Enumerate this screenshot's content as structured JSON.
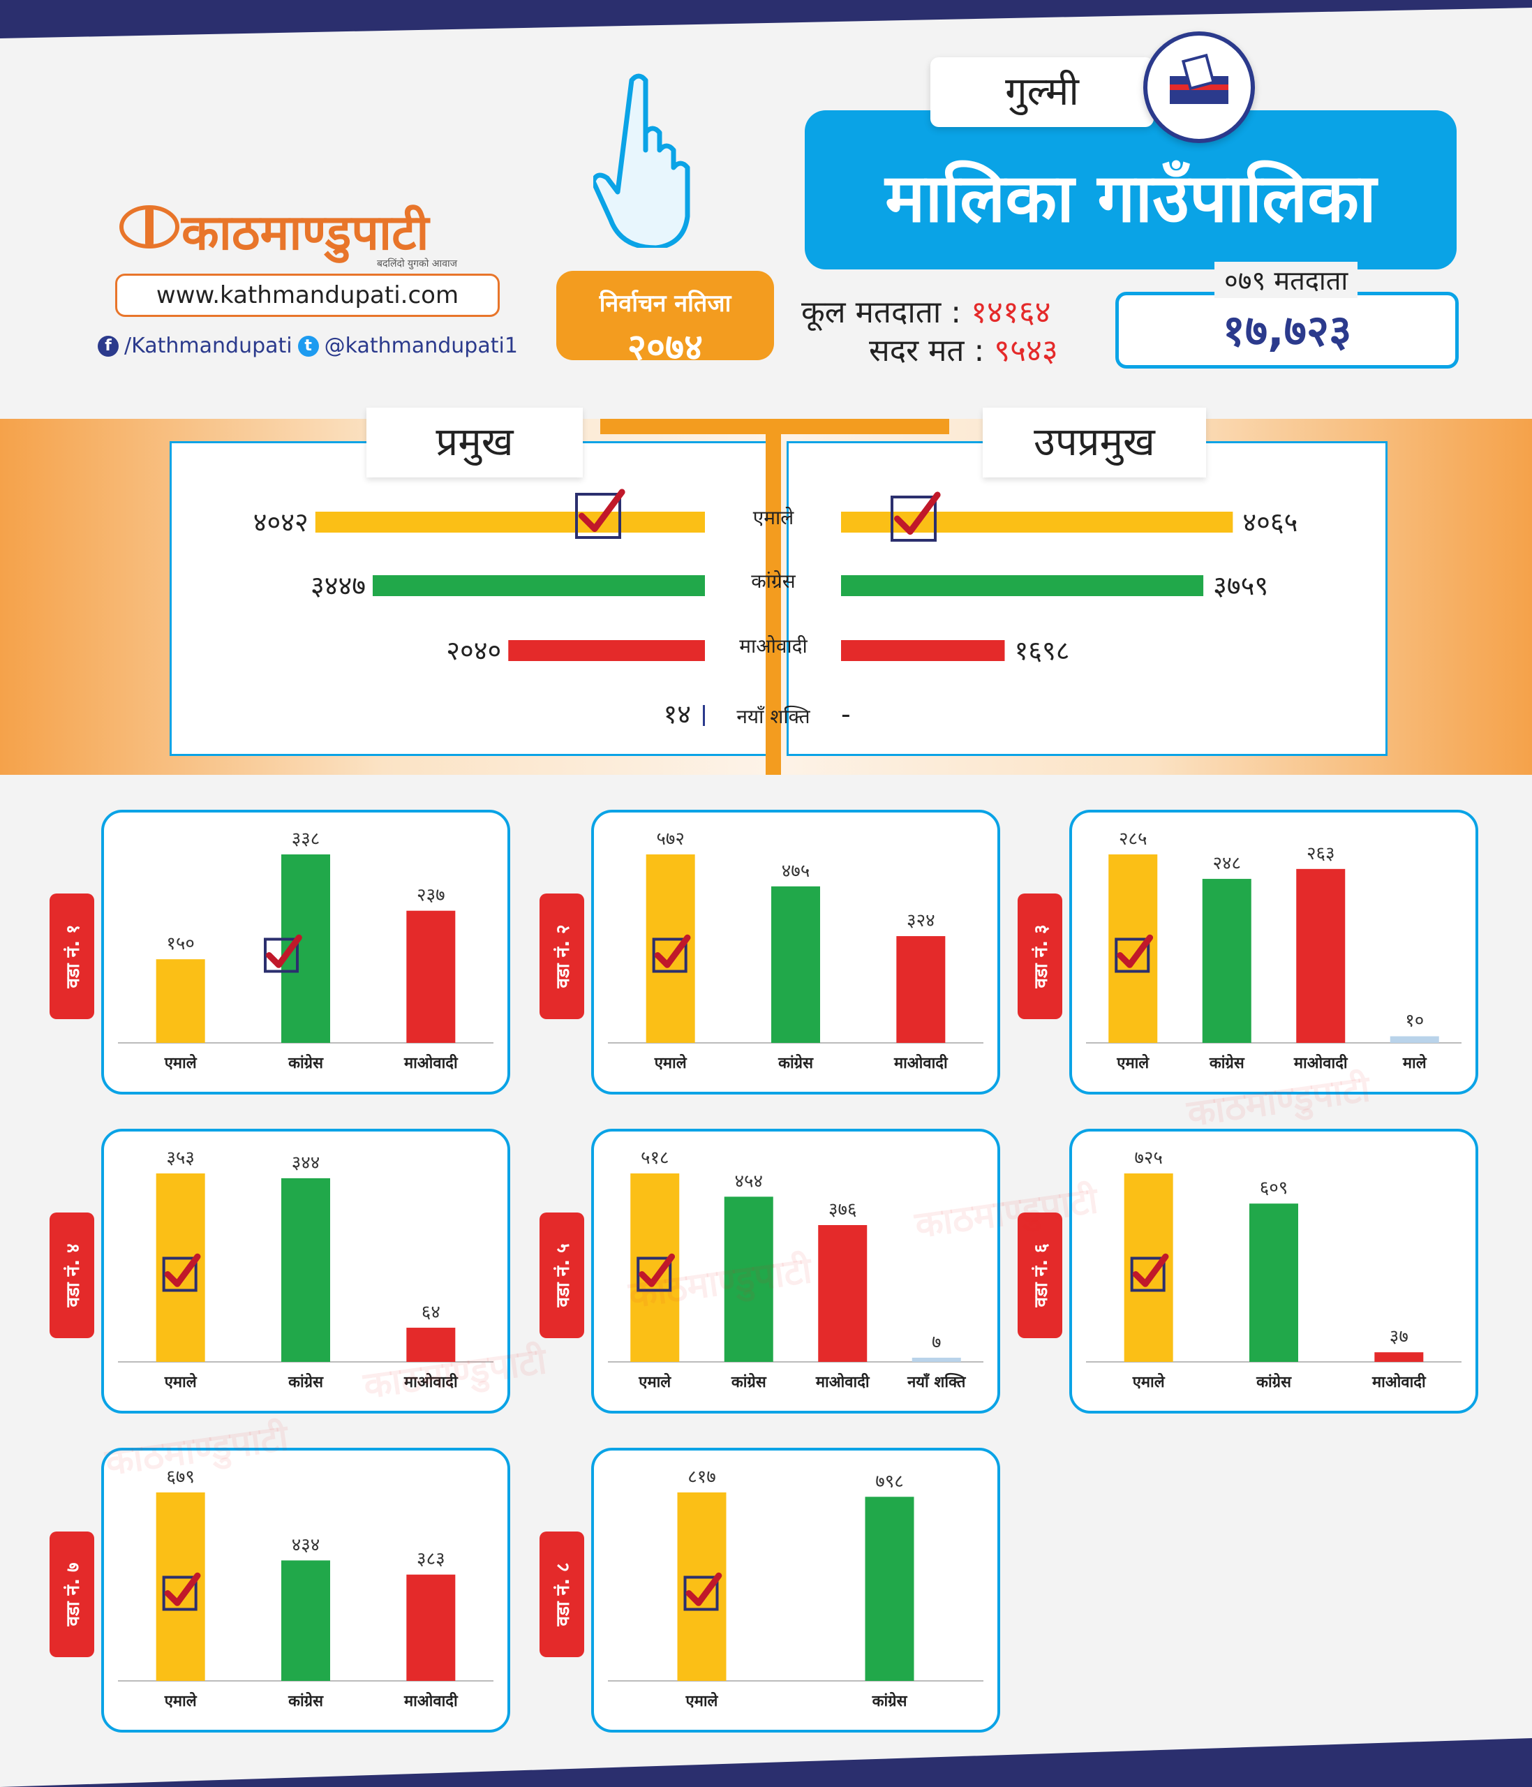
{
  "brand": {
    "name": "काठमाण्डुपाटी",
    "tagline": "बदलिंदो युगको आवाज",
    "url": "www.kathmandupati.com",
    "facebook": "/Kathmandupati",
    "twitter": "@kathmandupati1"
  },
  "badge": {
    "line1": "निर्वाचन नतिजा",
    "line2": "२०७४"
  },
  "header": {
    "district": "गुल्मी",
    "title": "मालिका गाउँपालिका",
    "total_voters_label": "कूल मतदाता :",
    "total_voters": "१४१६४",
    "valid_votes_label": "सदर मत :",
    "valid_votes": "९५४३",
    "voters_079_label": "०७९ मतदाता",
    "voters_079": "१७,७२३"
  },
  "colors": {
    "uml": "#fbbf16",
    "congress": "#21a84a",
    "maoist": "#e42a2a",
    "male": "#b9d3ea",
    "accent": "#0aa3e6",
    "orange": "#f39c1f",
    "navy": "#2b2f6e"
  },
  "chart_data": [
    {
      "type": "bar",
      "title": "प्रमुख",
      "categories": [
        "एमाले",
        "कांग्रेस",
        "माओवादी",
        "नयाँ शक्ति"
      ],
      "values": [
        4042,
        3447,
        2040,
        14
      ],
      "labels": [
        "४०४२",
        "३४४७",
        "२०४०",
        "१४"
      ],
      "winner": "एमाले"
    },
    {
      "type": "bar",
      "title": "उपप्रमुख",
      "categories": [
        "एमाले",
        "कांग्रेस",
        "माओवादी",
        "नयाँ शक्ति"
      ],
      "values": [
        4065,
        3759,
        1698,
        null
      ],
      "labels": [
        "४०६५",
        "३७५९",
        "१६९८",
        "-"
      ],
      "winner": "एमाले"
    },
    {
      "type": "bar",
      "ward": "वडा नं. १",
      "categories": [
        "एमाले",
        "कांग्रेस",
        "माओवादी"
      ],
      "values": [
        150,
        338,
        237
      ],
      "labels": [
        "१५०",
        "३३८",
        "२३७"
      ],
      "winner": "कांग्रेस"
    },
    {
      "type": "bar",
      "ward": "वडा नं. २",
      "categories": [
        "एमाले",
        "कांग्रेस",
        "माओवादी"
      ],
      "values": [
        572,
        475,
        324
      ],
      "labels": [
        "५७२",
        "४७५",
        "३२४"
      ],
      "winner": "एमाले"
    },
    {
      "type": "bar",
      "ward": "वडा नं. ३",
      "categories": [
        "एमाले",
        "कांग्रेस",
        "माओवादी",
        "माले"
      ],
      "values": [
        285,
        248,
        263,
        10
      ],
      "labels": [
        "२८५",
        "२४८",
        "२६३",
        "१०"
      ],
      "winner": "एमाले"
    },
    {
      "type": "bar",
      "ward": "वडा नं. ४",
      "categories": [
        "एमाले",
        "कांग्रेस",
        "माओवादी"
      ],
      "values": [
        353,
        344,
        64
      ],
      "labels": [
        "३५३",
        "३४४",
        "६४"
      ],
      "winner": "एमाले"
    },
    {
      "type": "bar",
      "ward": "वडा नं. ५",
      "categories": [
        "एमाले",
        "कांग्रेस",
        "माओवादी",
        "नयाँ शक्ति"
      ],
      "values": [
        518,
        454,
        376,
        7
      ],
      "labels": [
        "५१८",
        "४५४",
        "३७६",
        "७"
      ],
      "winner": "एमाले"
    },
    {
      "type": "bar",
      "ward": "वडा नं. ६",
      "categories": [
        "एमाले",
        "कांग्रेस",
        "माओवादी"
      ],
      "values": [
        725,
        609,
        37
      ],
      "labels": [
        "७२५",
        "६०९",
        "३७"
      ],
      "winner": "एमाले"
    },
    {
      "type": "bar",
      "ward": "वडा नं. ७",
      "categories": [
        "एमाले",
        "कांग्रेस",
        "माओवादी"
      ],
      "values": [
        679,
        434,
        383
      ],
      "labels": [
        "६७९",
        "४३४",
        "३८३"
      ],
      "winner": "एमाले"
    },
    {
      "type": "bar",
      "ward": "वडा नं. ८",
      "categories": [
        "एमाले",
        "कांग्रेस"
      ],
      "values": [
        817,
        798
      ],
      "labels": [
        "८१७",
        "७९८"
      ],
      "winner": "एमाले"
    }
  ]
}
